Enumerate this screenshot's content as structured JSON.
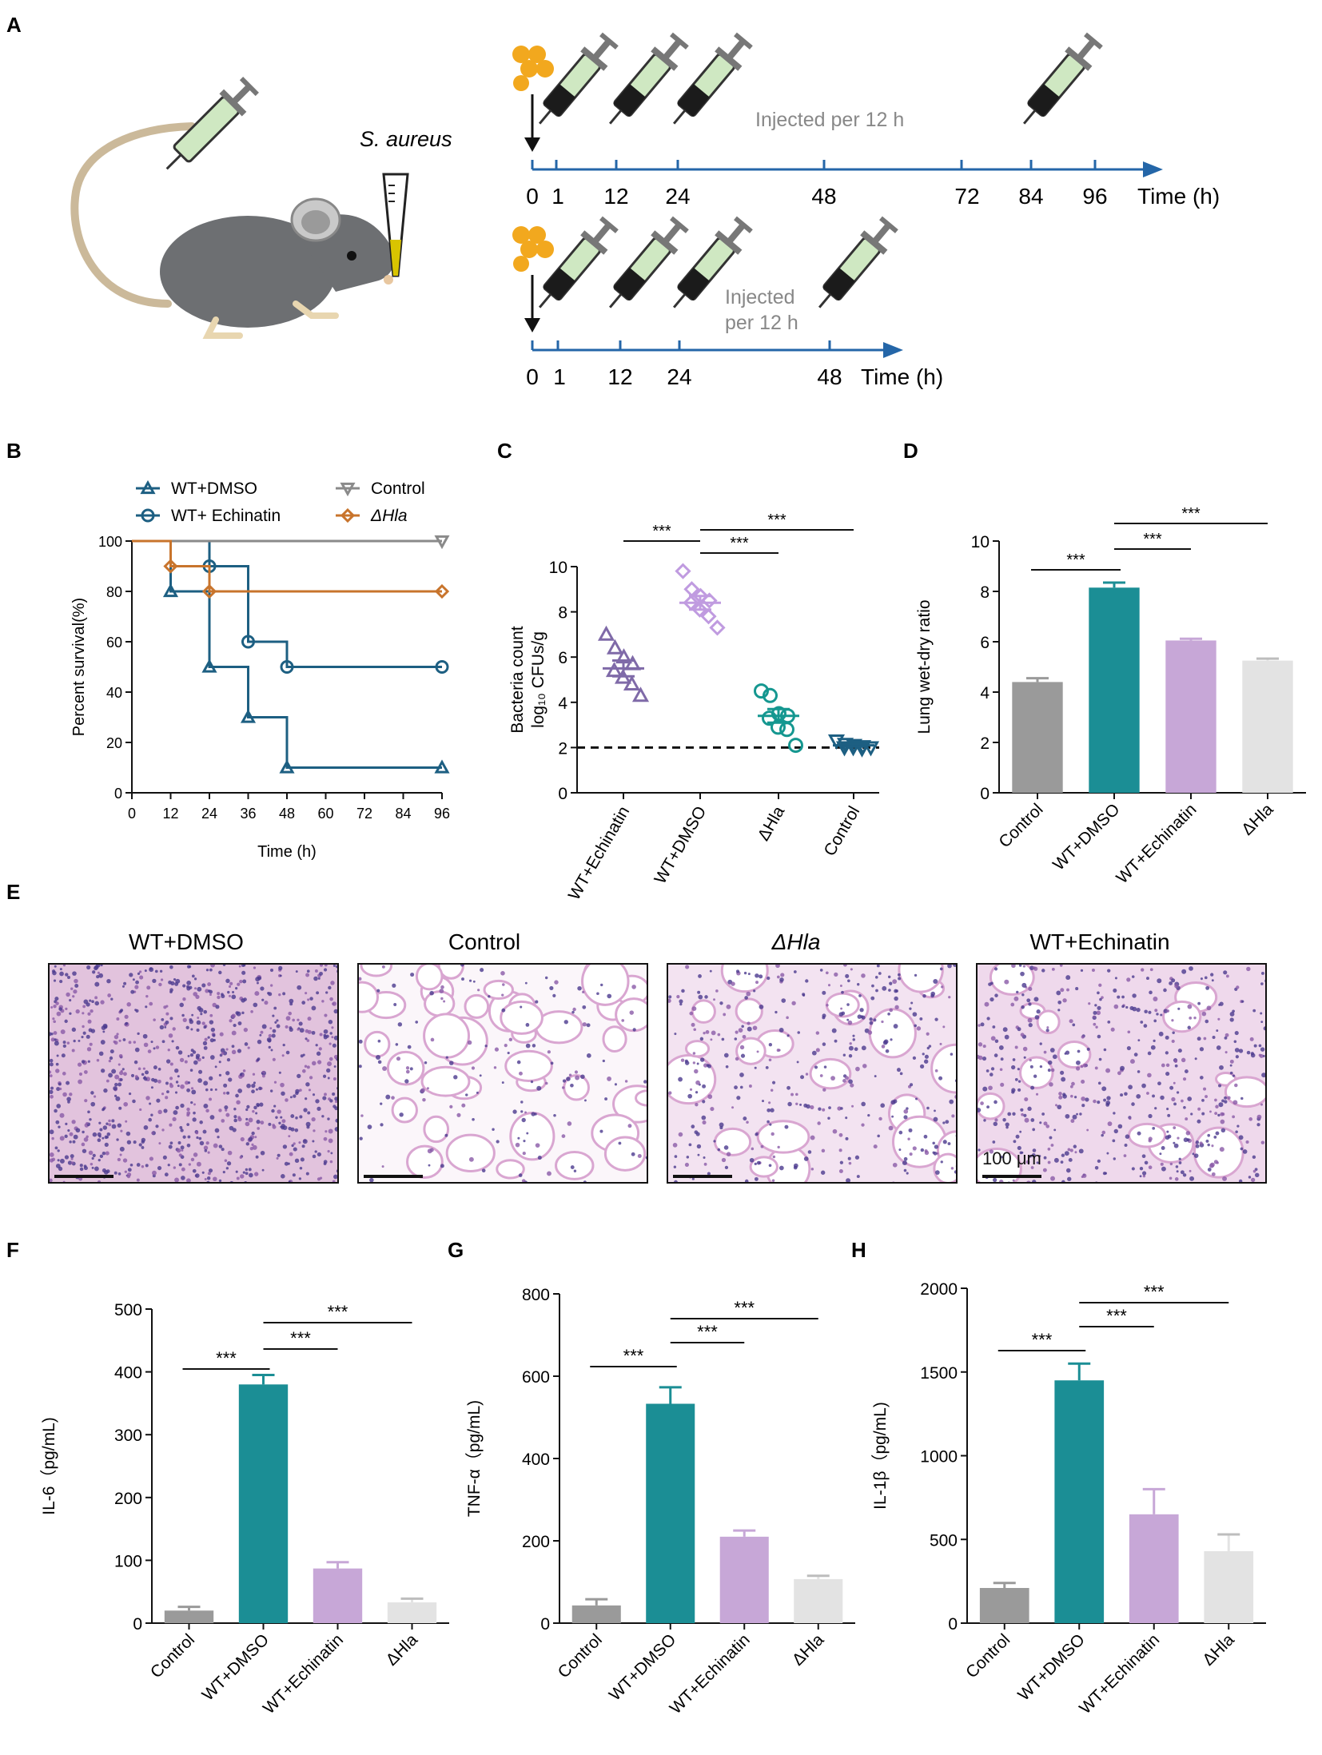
{
  "colors": {
    "dmso": "#1b8e95",
    "echinatin": "#c7a7d7",
    "control": "#9a9a9a",
    "dhla": "#e3e3e3",
    "dhla_line": "#c8742c",
    "b_dmso": "#1d5f82",
    "c_echinatin": "#7f6aa8",
    "c_dmso": "#c09be0",
    "c_dhla": "#159790",
    "c_control": "#1d5f82",
    "timeline": "#2466a8",
    "mouse": "#6d6f72"
  },
  "panel_labels": {
    "a": "A",
    "b": "B",
    "c": "C",
    "d": "D",
    "e": "E",
    "f": "F",
    "g": "G",
    "h": "H"
  },
  "panel_a": {
    "species": "S. aureus",
    "note_top": "Injected per 12 h",
    "note_bottom_1": "Injected",
    "note_bottom_2": "per 12 h",
    "axis_label": "Time (h)",
    "top_ticks": [
      "0",
      "1",
      "12",
      "24",
      "48",
      "72",
      "84",
      "96"
    ],
    "bottom_ticks": [
      "0",
      "1",
      "12",
      "24",
      "48"
    ]
  },
  "panel_e": {
    "titles": [
      "WT+DMSO",
      "Control",
      "ΔHla",
      "WT+Echinatin"
    ],
    "scale_label": "100 μm"
  },
  "chart_data": [
    {
      "panel": "B",
      "type": "line",
      "step": true,
      "xlabel": "Time (h)",
      "ylabel": "Percent survival(%)",
      "xlim": [
        0,
        96
      ],
      "ylim": [
        0,
        100
      ],
      "xticks": [
        0,
        12,
        24,
        36,
        48,
        60,
        72,
        84,
        96
      ],
      "yticks": [
        0,
        20,
        40,
        60,
        80,
        100
      ],
      "series": [
        {
          "name": "WT+DMSO",
          "marker": "triangle-up",
          "color": "#1d5f82",
          "x": [
            0,
            12,
            24,
            36,
            48,
            96
          ],
          "y": [
            100,
            80,
            50,
            30,
            10,
            10
          ]
        },
        {
          "name": "WT+ Echinatin",
          "marker": "circle",
          "color": "#1d5f82",
          "x": [
            0,
            24,
            36,
            48,
            96
          ],
          "y": [
            100,
            90,
            60,
            50,
            50
          ]
        },
        {
          "name": "Control",
          "marker": "triangle-down",
          "color": "#8a8a8a",
          "x": [
            0,
            96
          ],
          "y": [
            100,
            100
          ]
        },
        {
          "name": "ΔHla",
          "marker": "diamond",
          "color": "#c8742c",
          "x": [
            0,
            12,
            24,
            96
          ],
          "y": [
            100,
            90,
            80,
            80
          ]
        }
      ]
    },
    {
      "panel": "C",
      "type": "scatter",
      "ylabel_1": "Bacteria count",
      "ylabel_2": "log₁₀ CFUs/g",
      "ylim": [
        0,
        10
      ],
      "yticks": [
        0,
        2,
        4,
        6,
        8,
        10
      ],
      "threshold": 2,
      "categories": [
        "WT+Echinatin",
        "WT+DMSO",
        "ΔHla",
        "Control"
      ],
      "markers": [
        "triangle-up",
        "diamond",
        "circle",
        "triangle-down"
      ],
      "means": [
        5.5,
        8.4,
        3.4,
        2.1
      ],
      "sems": [
        0.35,
        0.3,
        0.3,
        0.06
      ],
      "points": [
        [
          7,
          6.4,
          6,
          5.7,
          5.4,
          5.1,
          4.8,
          4.3
        ],
        [
          9.8,
          9,
          8.7,
          8.5,
          8.4,
          8.1,
          7.8,
          7.3
        ],
        [
          4.5,
          4.3,
          3.5,
          3.4,
          3.3,
          2.9,
          2.8,
          2.1
        ],
        [
          2.3,
          2.15,
          2.1,
          2.05,
          2,
          2,
          1.95,
          2
        ]
      ],
      "significance": [
        {
          "from": 0,
          "to": 1,
          "label": "***"
        },
        {
          "from": 1,
          "to": 2,
          "label": "***"
        },
        {
          "from": 1,
          "to": 3,
          "label": "***"
        }
      ]
    },
    {
      "panel": "D",
      "type": "bar",
      "ylabel": "Lung wet-dry ratio",
      "ylim": [
        0,
        10
      ],
      "yticks": [
        0,
        2,
        4,
        6,
        8,
        10
      ],
      "categories": [
        "Control",
        "WT+DMSO",
        "WT+Echinatin",
        "ΔHla"
      ],
      "values": [
        4.4,
        8.15,
        6.05,
        5.25
      ],
      "errors": [
        0.15,
        0.2,
        0.07,
        0.08
      ],
      "significance": [
        {
          "from": 0,
          "to": 1,
          "label": "***"
        },
        {
          "from": 1,
          "to": 2,
          "label": "***"
        },
        {
          "from": 1,
          "to": 3,
          "label": "***"
        }
      ]
    },
    {
      "panel": "F",
      "type": "bar",
      "ylabel": "IL-6（pg/mL)",
      "ylim": [
        0,
        500
      ],
      "yticks": [
        0,
        100,
        200,
        300,
        400,
        500
      ],
      "categories": [
        "Control",
        "WT+DMSO",
        "WT+Echinatin",
        "ΔHla"
      ],
      "values": [
        20,
        380,
        87,
        33
      ],
      "errors": [
        6,
        15,
        10,
        6
      ],
      "significance": [
        {
          "from": 0,
          "to": 1,
          "label": "***"
        },
        {
          "from": 1,
          "to": 2,
          "label": "***"
        },
        {
          "from": 1,
          "to": 3,
          "label": "***"
        }
      ]
    },
    {
      "panel": "G",
      "type": "bar",
      "ylabel": "TNF-α（pg/mL)",
      "ylim": [
        0,
        800
      ],
      "yticks": [
        0,
        200,
        400,
        600,
        800
      ],
      "categories": [
        "Control",
        "WT+DMSO",
        "WT+Echinatin",
        "ΔHla"
      ],
      "values": [
        43,
        533,
        210,
        107
      ],
      "errors": [
        15,
        40,
        15,
        8
      ],
      "significance": [
        {
          "from": 0,
          "to": 1,
          "label": "***"
        },
        {
          "from": 1,
          "to": 2,
          "label": "***"
        },
        {
          "from": 1,
          "to": 3,
          "label": "***"
        }
      ]
    },
    {
      "panel": "H",
      "type": "bar",
      "ylabel": "IL-1β（pg/mL)",
      "ylim": [
        0,
        2000
      ],
      "yticks": [
        0,
        500,
        1000,
        1500,
        2000
      ],
      "categories": [
        "Control",
        "WT+DMSO",
        "WT+Echinatin",
        "ΔHla"
      ],
      "values": [
        210,
        1450,
        650,
        430
      ],
      "errors": [
        30,
        100,
        150,
        100
      ],
      "significance": [
        {
          "from": 0,
          "to": 1,
          "label": "***"
        },
        {
          "from": 1,
          "to": 2,
          "label": "***"
        },
        {
          "from": 1,
          "to": 3,
          "label": "***"
        }
      ]
    }
  ]
}
